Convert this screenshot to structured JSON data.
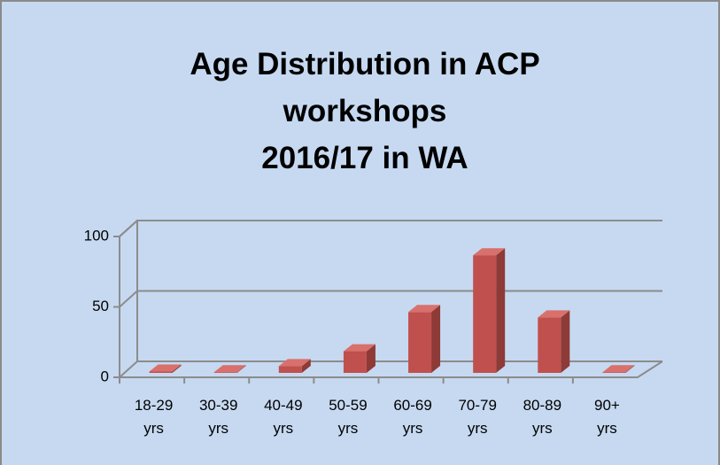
{
  "chart_data": {
    "type": "bar3d",
    "title": [
      "Age Distribution in ACP",
      "workshops",
      "2016/17 in WA"
    ],
    "categories": [
      "18-29 yrs",
      "30-39 yrs",
      "40-49 yrs",
      "50-59 yrs",
      "60-69 yrs",
      "70-79 yrs",
      "80-89 yrs",
      "90+ yrs"
    ],
    "values": [
      1,
      0.5,
      5,
      16,
      45,
      87,
      41,
      0.5
    ],
    "color": "#c0504d",
    "ylim": [
      0,
      100
    ],
    "yticks": [
      0,
      50,
      100
    ],
    "grid": true
  }
}
